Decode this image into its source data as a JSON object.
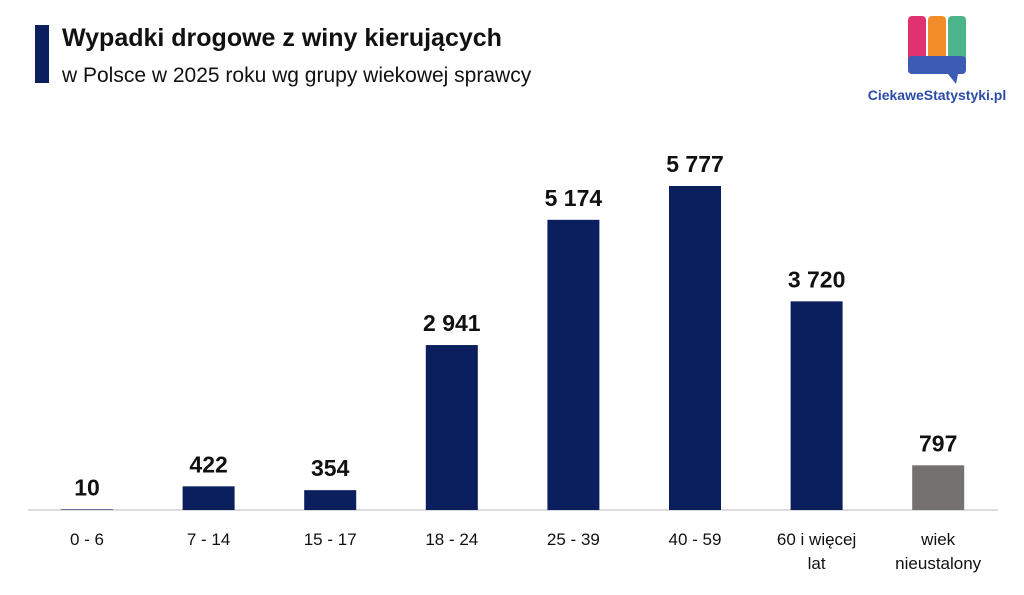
{
  "chart_data": {
    "type": "bar",
    "title": "Wypadki drogowe z winy kierujących",
    "subtitle": "w Polsce w 2025 roku wg grupy wiekowej sprawcy",
    "brand": "CiekaweStatystyki.pl",
    "categories": [
      "0 - 6",
      "7 - 14",
      "15 - 17",
      "18 - 24",
      "25 - 39",
      "40 - 59",
      "60 i więcej lat",
      "wiek nieustalony"
    ],
    "values": [
      10,
      422,
      354,
      2941,
      5174,
      5777,
      3720,
      797
    ],
    "value_labels": [
      "10",
      "422",
      "354",
      "2 941",
      "5 174",
      "5 777",
      "3 720",
      "797"
    ],
    "colors": [
      "#0b1f5e",
      "#0b1f5e",
      "#0b1f5e",
      "#0b1f5e",
      "#0b1f5e",
      "#0b1f5e",
      "#0b1f5e",
      "#767171"
    ]
  }
}
